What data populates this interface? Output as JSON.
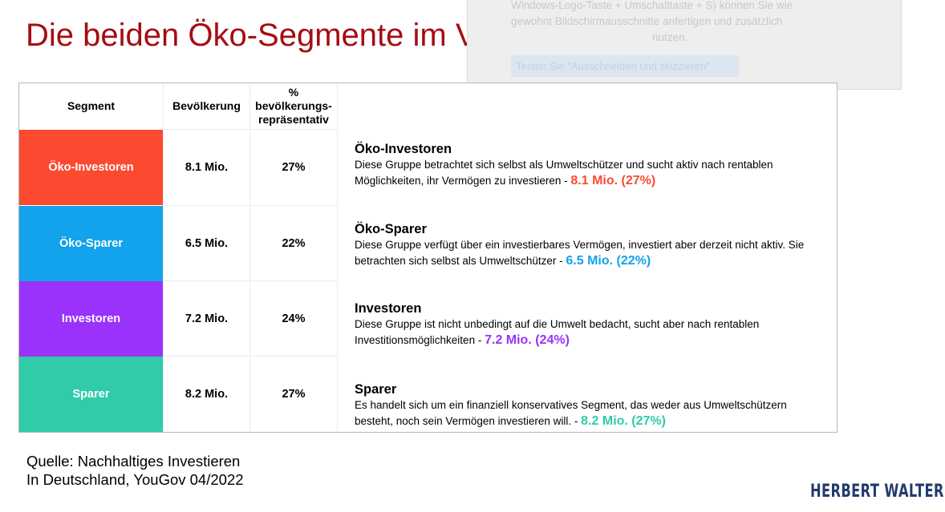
{
  "title": "Die beiden Öko-Segmente im Vergleich",
  "overlay": {
    "line1": "Windows-Logo-Taste + Umschalttaste + S) können Sie wie",
    "line2": "gewohnt Bildschirmausschnitte anfertigen und zusätzlich",
    "line3": "nutzen.",
    "button_label": "Testen Sie \"Ausschneiden und skizzieren\""
  },
  "table": {
    "headers": {
      "segment": "Segment",
      "population": "Bevölkerung",
      "pct_line1": "%",
      "pct_line2": "bevölkerungs-",
      "pct_line3": "repräsentativ"
    },
    "rows": [
      {
        "segment": "Öko-Investoren",
        "population": "8.1 Mio.",
        "percent": "27%",
        "color": "#fc4a30",
        "desc_title": "Öko-Investoren",
        "desc_line1": "Diese Gruppe betrachtet sich selbst als Umweltschützer und sucht aktiv nach rentablen",
        "desc_line2": "Möglichkeiten, ihr Vermögen zu investieren -",
        "highlight": "8.1 Mio. (27%)"
      },
      {
        "segment": "Öko-Sparer",
        "population": "6.5 Mio.",
        "percent": "22%",
        "color": "#13a2ec",
        "desc_title": "Öko-Sparer",
        "desc_line1": "Diese Gruppe verfügt über ein investierbares Vermögen, investiert aber derzeit nicht aktiv. Sie",
        "desc_line2": "betrachten sich selbst als Umweltschützer -",
        "highlight": "6.5 Mio. (22%)"
      },
      {
        "segment": "Investoren",
        "population": "7.2 Mio.",
        "percent": "24%",
        "color": "#9a32fb",
        "desc_title": "Investoren",
        "desc_line1": "Diese Gruppe ist nicht unbedingt auf die Umwelt bedacht, sucht aber nach rentablen",
        "desc_line2": "Investitionsmöglichkeiten -",
        "highlight": "7.2 Mio. (24%)"
      },
      {
        "segment": "Sparer",
        "population": "8.2 Mio.",
        "percent": "27%",
        "color": "#30cba8",
        "desc_title": "Sparer",
        "desc_line1": "Es handelt sich um ein finanziell konservatives Segment, das weder aus Umweltschützern",
        "desc_line2": "besteht, noch sein Vermögen investieren will. -",
        "highlight": "8.2 Mio. (27%)"
      }
    ]
  },
  "source": {
    "line1": "Quelle: Nachhaltiges Investieren",
    "line2": "In Deutschland, YouGov 04/2022"
  },
  "logo": "HERBERT WALTER"
}
